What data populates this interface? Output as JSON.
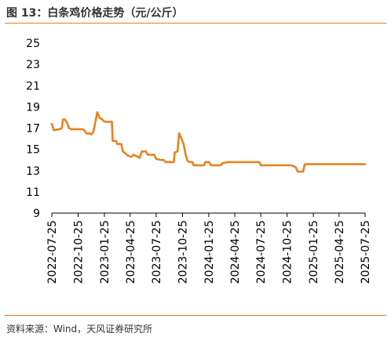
{
  "header": {
    "title": "图 13：白条鸡价格走势（元/公斤）"
  },
  "footer": {
    "source": "资料来源：Wind，天风证券研究所"
  },
  "colors": {
    "accent": "#e07b1f",
    "series": "#e8821e"
  },
  "chart_data": {
    "type": "line",
    "title": "图 13：白条鸡价格走势（元/公斤）",
    "xlabel": "",
    "ylabel": "",
    "ylim": [
      9,
      25
    ],
    "yticks": [
      9,
      11,
      13,
      15,
      17,
      19,
      21,
      23,
      25
    ],
    "xlim": [
      "2022-07-25",
      "2025-07-25"
    ],
    "xticks": [
      "2022-07-25",
      "2022-10-25",
      "2023-01-25",
      "2023-04-25",
      "2023-07-25",
      "2023-10-25",
      "2024-01-25",
      "2024-04-25",
      "2024-07-25",
      "2024-10-25",
      "2025-01-25",
      "2025-04-25",
      "2025-07-25"
    ],
    "grid": false,
    "legend": "none",
    "series": [
      {
        "points": [
          [
            "2022-07-25",
            17.4
          ],
          [
            "2022-08-01",
            16.8
          ],
          [
            "2022-08-20",
            16.9
          ],
          [
            "2022-08-29",
            17.0
          ],
          [
            "2022-09-02",
            17.8
          ],
          [
            "2022-09-09",
            17.8
          ],
          [
            "2022-09-16",
            17.5
          ],
          [
            "2022-09-23",
            17.0
          ],
          [
            "2022-10-01",
            16.9
          ],
          [
            "2022-11-10",
            16.9
          ],
          [
            "2022-11-16",
            16.8
          ],
          [
            "2022-11-22",
            16.5
          ],
          [
            "2022-12-05",
            16.5
          ],
          [
            "2022-12-10",
            16.4
          ],
          [
            "2022-12-17",
            16.6
          ],
          [
            "2022-12-24",
            17.5
          ],
          [
            "2022-12-31",
            18.5
          ],
          [
            "2023-01-07",
            18.0
          ],
          [
            "2023-01-18",
            17.8
          ],
          [
            "2023-01-25",
            17.6
          ],
          [
            "2023-02-20",
            17.6
          ],
          [
            "2023-02-23",
            15.8
          ],
          [
            "2023-03-07",
            15.8
          ],
          [
            "2023-03-11",
            15.5
          ],
          [
            "2023-03-25",
            15.5
          ],
          [
            "2023-03-30",
            14.8
          ],
          [
            "2023-04-10",
            14.6
          ],
          [
            "2023-04-17",
            14.4
          ],
          [
            "2023-04-30",
            14.3
          ],
          [
            "2023-05-07",
            14.5
          ],
          [
            "2023-05-14",
            14.4
          ],
          [
            "2023-05-28",
            14.2
          ],
          [
            "2023-06-05",
            14.8
          ],
          [
            "2023-06-19",
            14.8
          ],
          [
            "2023-06-25",
            14.5
          ],
          [
            "2023-07-18",
            14.5
          ],
          [
            "2023-07-25",
            14.1
          ],
          [
            "2023-08-12",
            14.0
          ],
          [
            "2023-08-20",
            14.0
          ],
          [
            "2023-08-27",
            13.8
          ],
          [
            "2023-09-25",
            13.8
          ],
          [
            "2023-09-28",
            14.7
          ],
          [
            "2023-10-08",
            14.8
          ],
          [
            "2023-10-13",
            16.5
          ],
          [
            "2023-10-20",
            16.1
          ],
          [
            "2023-10-29",
            15.5
          ],
          [
            "2023-11-05",
            14.5
          ],
          [
            "2023-11-12",
            13.9
          ],
          [
            "2023-11-19",
            13.8
          ],
          [
            "2023-11-29",
            13.8
          ],
          [
            "2023-12-03",
            13.5
          ],
          [
            "2024-01-09",
            13.5
          ],
          [
            "2024-01-13",
            13.8
          ],
          [
            "2024-01-27",
            13.8
          ],
          [
            "2024-02-01",
            13.5
          ],
          [
            "2024-03-07",
            13.5
          ],
          [
            "2024-03-13",
            13.7
          ],
          [
            "2024-04-01",
            13.8
          ],
          [
            "2024-07-20",
            13.8
          ],
          [
            "2024-07-25",
            13.5
          ],
          [
            "2024-11-10",
            13.5
          ],
          [
            "2024-11-25",
            13.3
          ],
          [
            "2024-12-01",
            12.9
          ],
          [
            "2024-12-20",
            12.9
          ],
          [
            "2024-12-26",
            13.6
          ],
          [
            "2025-07-25",
            13.6
          ]
        ]
      }
    ]
  }
}
